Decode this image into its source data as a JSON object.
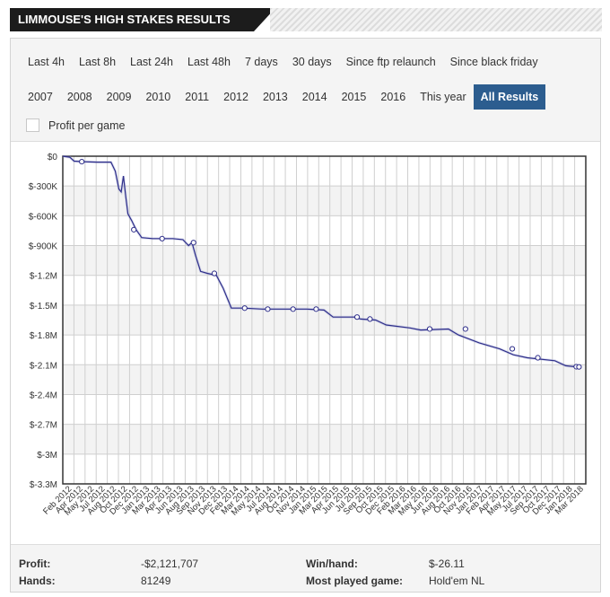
{
  "header": {
    "title": "LIMMOUSE'S HIGH STAKES RESULTS"
  },
  "filters": {
    "row1": [
      "Last 4h",
      "Last 8h",
      "Last 24h",
      "Last 48h",
      "7 days",
      "30 days",
      "Since ftp relaunch",
      "Since black friday"
    ],
    "row2": [
      "2007",
      "2008",
      "2009",
      "2010",
      "2011",
      "2012",
      "2013",
      "2014",
      "2015",
      "2016",
      "This year",
      "All Results"
    ],
    "active": "All Results",
    "profit_per_game_label": "Profit per game",
    "profit_per_game_checked": false
  },
  "colors": {
    "line": "#2e2e8a",
    "active_button": "#2c5d8f",
    "title_bar": "#1c1c1c"
  },
  "chart_data": {
    "type": "line",
    "title": "",
    "xlabel": "",
    "ylabel": "",
    "ylim": [
      -3300000,
      0
    ],
    "yticks": [
      0,
      -300000,
      -600000,
      -900000,
      -1200000,
      -1500000,
      -1800000,
      -2100000,
      -2400000,
      -2700000,
      -3000000,
      -3300000
    ],
    "ytick_labels": [
      "$0",
      "$-300K",
      "$-600K",
      "$-900K",
      "$-1.2M",
      "$-1.5M",
      "$-1.8M",
      "$-2.1M",
      "$-2.4M",
      "$-2.7M",
      "$-3M",
      "$-3.3M"
    ],
    "xlim": [
      "2012-01-01",
      "2018-05-01"
    ],
    "xtick_labels": [
      "Feb 2012",
      "Apr 2012",
      "May 2012",
      "Jul 2012",
      "Aug 2012",
      "Oct 2012",
      "Dec 2012",
      "Jan 2013",
      "Mar 2013",
      "Apr 2013",
      "Jun 2013",
      "Aug 2013",
      "Sep 2013",
      "Nov 2013",
      "Dec 2013",
      "Feb 2014",
      "Mar 2014",
      "May 2014",
      "Jul 2014",
      "Aug 2014",
      "Oct 2014",
      "Nov 2014",
      "Jan 2015",
      "Mar 2015",
      "Apr 2015",
      "Jun 2015",
      "Jul 2015",
      "Sep 2015",
      "Oct 2015",
      "Dec 2015",
      "Feb 2016",
      "Mar 2016",
      "May 2016",
      "Jun 2016",
      "Aug 2016",
      "Oct 2016",
      "Nov 2016",
      "Jan 2017",
      "Feb 2017",
      "Apr 2017",
      "May 2017",
      "Jul 2017",
      "Sep 2017",
      "Oct 2017",
      "Dec 2017",
      "Jan 2018",
      "Mar 2018"
    ],
    "grid": true,
    "series": [
      {
        "values": [
          [
            "2012-01-01",
            0
          ],
          [
            "2012-02-01",
            -10000
          ],
          [
            "2012-02-20",
            -50000
          ],
          [
            "2012-04-01",
            -55000
          ],
          [
            "2012-06-01",
            -60000
          ],
          [
            "2012-08-01",
            -60000
          ],
          [
            "2012-08-20",
            -150000
          ],
          [
            "2012-09-05",
            -330000
          ],
          [
            "2012-09-15",
            -360000
          ],
          [
            "2012-09-25",
            -200000
          ],
          [
            "2012-10-05",
            -400000
          ],
          [
            "2012-10-15",
            -580000
          ],
          [
            "2012-11-01",
            -650000
          ],
          [
            "2012-11-20",
            -740000
          ],
          [
            "2012-12-15",
            -820000
          ],
          [
            "2013-02-01",
            -830000
          ],
          [
            "2013-05-01",
            -830000
          ],
          [
            "2013-06-15",
            -840000
          ],
          [
            "2013-07-10",
            -900000
          ],
          [
            "2013-07-25",
            -870000
          ],
          [
            "2013-08-10",
            -1000000
          ],
          [
            "2013-09-01",
            -1160000
          ],
          [
            "2013-10-01",
            -1180000
          ],
          [
            "2013-11-10",
            -1200000
          ],
          [
            "2013-12-10",
            -1330000
          ],
          [
            "2014-01-15",
            -1530000
          ],
          [
            "2014-03-10",
            -1530000
          ],
          [
            "2014-06-01",
            -1540000
          ],
          [
            "2014-09-15",
            -1540000
          ],
          [
            "2014-12-15",
            -1540000
          ],
          [
            "2015-03-01",
            -1550000
          ],
          [
            "2015-04-10",
            -1620000
          ],
          [
            "2015-07-15",
            -1620000
          ],
          [
            "2015-08-10",
            -1640000
          ],
          [
            "2015-10-15",
            -1650000
          ],
          [
            "2015-12-01",
            -1700000
          ],
          [
            "2016-03-15",
            -1730000
          ],
          [
            "2016-05-01",
            -1750000
          ],
          [
            "2016-09-01",
            -1740000
          ],
          [
            "2016-10-15",
            -1800000
          ],
          [
            "2017-01-15",
            -1880000
          ],
          [
            "2017-04-15",
            -1940000
          ],
          [
            "2017-06-15",
            -2000000
          ],
          [
            "2017-08-15",
            -2030000
          ],
          [
            "2017-12-15",
            -2060000
          ],
          [
            "2018-02-01",
            -2110000
          ],
          [
            "2018-03-15",
            -2120000
          ],
          [
            "2018-04-01",
            -2121707
          ]
        ],
        "markers": [
          [
            "2012-03-25",
            -55000
          ],
          [
            "2012-11-10",
            -740000
          ],
          [
            "2013-03-15",
            -830000
          ],
          [
            "2013-08-01",
            -870000
          ],
          [
            "2013-11-01",
            -1180000
          ],
          [
            "2014-03-15",
            -1530000
          ],
          [
            "2014-06-25",
            -1540000
          ],
          [
            "2014-10-15",
            -1540000
          ],
          [
            "2015-01-25",
            -1540000
          ],
          [
            "2015-07-25",
            -1620000
          ],
          [
            "2015-09-20",
            -1640000
          ],
          [
            "2016-06-10",
            -1740000
          ],
          [
            "2016-11-15",
            -1740000
          ],
          [
            "2017-06-10",
            -1940000
          ],
          [
            "2017-10-01",
            -2030000
          ],
          [
            "2018-03-20",
            -2120000
          ],
          [
            "2018-04-01",
            -2121707
          ]
        ]
      }
    ]
  },
  "stats": {
    "profit_label": "Profit:",
    "profit": "-$2,121,707",
    "hands_label": "Hands:",
    "hands": "81249",
    "winhand_label": "Win/hand:",
    "winhand": "$-26.11",
    "mostplayed_label": "Most played game:",
    "mostplayed": "Hold'em NL"
  }
}
